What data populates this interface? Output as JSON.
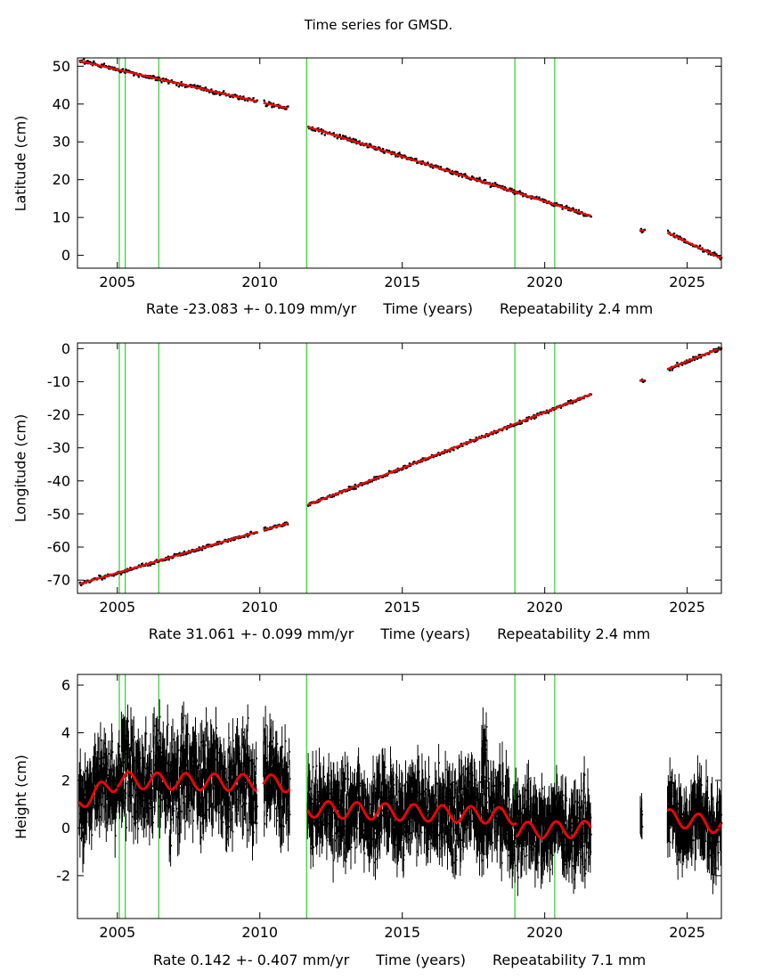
{
  "figure": {
    "bg_color": "#ffffff",
    "colors": {
      "points": "#000000",
      "fit_line": "#ff0000",
      "event_line": "#00c800",
      "axis": "#000000"
    }
  },
  "chart_data": [
    {
      "type": "scatter",
      "panel": "latitude",
      "title": "Time series for GMSD.",
      "ylabel": "Latitude (cm)",
      "xlabel": "Time (years)",
      "rate_label": "Rate -23.083 +- 0.109 mm/yr",
      "repeatability_label": "Repeatability 2.4 mm",
      "xlim": [
        2003.6,
        2026.2
      ],
      "ylim": [
        -3.4,
        52.2
      ],
      "xticks": [
        2005,
        2010,
        2015,
        2020,
        2025
      ],
      "yticks": [
        0,
        10,
        20,
        30,
        40,
        50
      ],
      "event_lines": [
        2005.07,
        2005.28,
        2006.45,
        2011.64,
        2018.95,
        2020.35
      ],
      "points_per_year": 40,
      "error_bar": 0.22,
      "seasonal_amp": 0,
      "legend": "off",
      "grid": "off",
      "segments": [
        {
          "x0": 2003.65,
          "x1": 2009.9,
          "y0": 51.4,
          "y1": 40.7,
          "noise": 0.28,
          "fit": true
        },
        {
          "x0": 2010.12,
          "x1": 2010.98,
          "y0": 40.3,
          "y1": 38.9,
          "noise": 0.28,
          "fit": true
        },
        {
          "x0": 2011.67,
          "x1": 2021.62,
          "y0": 34.0,
          "y1": 10.4,
          "noise": 0.28,
          "fit": true
        },
        {
          "x0": 2023.33,
          "x1": 2023.5,
          "y0": 6.7,
          "y1": 6.6,
          "noise": 0.25,
          "fit": true
        },
        {
          "x0": 2024.3,
          "x1": 2026.2,
          "y0": 6.0,
          "y1": -0.8,
          "noise": 0.28,
          "fit": true
        }
      ]
    },
    {
      "type": "scatter",
      "panel": "longitude",
      "title": "",
      "ylabel": "Longitude (cm)",
      "xlabel": "Time (years)",
      "rate_label": "Rate 31.061 +- 0.099 mm/yr",
      "repeatability_label": "Repeatability 2.4 mm",
      "xlim": [
        2003.6,
        2026.2
      ],
      "ylim": [
        -74,
        1.7
      ],
      "xticks": [
        2005,
        2010,
        2015,
        2020,
        2025
      ],
      "yticks": [
        0,
        -10,
        -20,
        -30,
        -40,
        -50,
        -60,
        -70
      ],
      "event_lines": [
        2005.07,
        2005.28,
        2006.45,
        2011.64,
        2018.95,
        2020.35
      ],
      "points_per_year": 40,
      "error_bar": 0.22,
      "seasonal_amp": 0,
      "legend": "off",
      "grid": "off",
      "segments": [
        {
          "x0": 2003.65,
          "x1": 2009.9,
          "y0": -71.2,
          "y1": -55.4,
          "noise": 0.28,
          "fit": true
        },
        {
          "x0": 2010.12,
          "x1": 2010.98,
          "y0": -54.9,
          "y1": -52.8,
          "noise": 0.28,
          "fit": true
        },
        {
          "x0": 2011.67,
          "x1": 2021.62,
          "y0": -47.3,
          "y1": -13.8,
          "noise": 0.28,
          "fit": true
        },
        {
          "x0": 2023.33,
          "x1": 2023.5,
          "y0": -9.6,
          "y1": -9.5,
          "noise": 0.25,
          "fit": true
        },
        {
          "x0": 2024.3,
          "x1": 2026.2,
          "y0": -6.2,
          "y1": 0.3,
          "noise": 0.28,
          "fit": true
        }
      ]
    },
    {
      "type": "scatter",
      "panel": "height",
      "title": "",
      "ylabel": "Height (cm)",
      "xlabel": "Time (years)",
      "rate_label": "Rate 0.142 +- 0.407 mm/yr",
      "repeatability_label": "Repeatability 7.1 mm",
      "xlim": [
        2003.6,
        2026.2
      ],
      "ylim": [
        -3.8,
        6.45
      ],
      "xticks": [
        2005,
        2010,
        2015,
        2020,
        2025
      ],
      "yticks": [
        -2,
        0,
        2,
        4,
        6
      ],
      "event_lines": [
        2005.07,
        2005.28,
        2006.45,
        2011.64,
        2018.95,
        2020.35
      ],
      "points_per_year": 120,
      "error_bar": 0.7,
      "seasonal_amp": 0.35,
      "legend": "off",
      "grid": "off",
      "segments": [
        {
          "x0": 2003.65,
          "x1": 2005.0,
          "y0": 1.1,
          "y1": 1.95,
          "noise": 0.75,
          "fit": true
        },
        {
          "x0": 2005.0,
          "x1": 2009.9,
          "y0": 2.0,
          "y1": 1.9,
          "noise": 1.0,
          "fit": true
        },
        {
          "x0": 2010.12,
          "x1": 2011.05,
          "y0": 1.9,
          "y1": 1.85,
          "noise": 1.0,
          "fit": true
        },
        {
          "x0": 2011.67,
          "x1": 2019.0,
          "y0": 0.8,
          "y1": 0.5,
          "noise": 0.85,
          "fit": true
        },
        {
          "x0": 2017.78,
          "x1": 2017.98,
          "y0": 3.1,
          "y1": 3.1,
          "noise": 0.75,
          "fit": false
        },
        {
          "x0": 2019.0,
          "x1": 2021.62,
          "y0": -0.1,
          "y1": -0.05,
          "noise": 0.8,
          "fit": true
        },
        {
          "x0": 2023.35,
          "x1": 2023.42,
          "y0": 0.2,
          "y1": 0.2,
          "noise": 0.35,
          "fit": false
        },
        {
          "x0": 2024.3,
          "x1": 2026.2,
          "y0": 0.45,
          "y1": 0.1,
          "noise": 0.7,
          "fit": true
        }
      ]
    }
  ]
}
